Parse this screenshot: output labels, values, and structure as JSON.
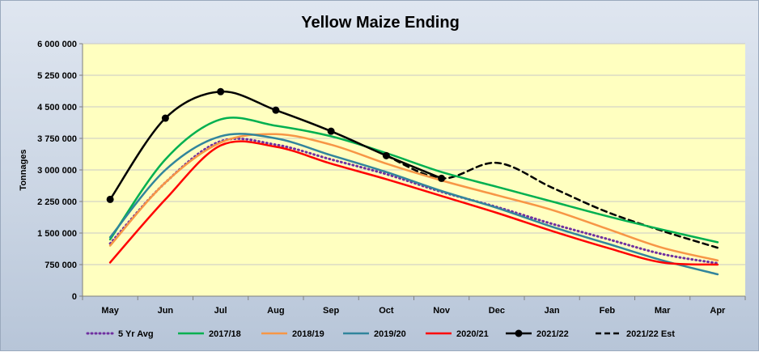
{
  "chart_data": {
    "type": "line",
    "title": "Yellow Maize Ending",
    "xlabel": "",
    "ylabel": "Tonnages",
    "categories": [
      "May",
      "Jun",
      "Jul",
      "Aug",
      "Sep",
      "Oct",
      "Nov",
      "Dec",
      "Jan",
      "Feb",
      "Mar",
      "Apr"
    ],
    "ylim": [
      0,
      6000000
    ],
    "yticks": [
      0,
      750000,
      1500000,
      2250000,
      3000000,
      3750000,
      4500000,
      5250000,
      6000000
    ],
    "ytick_labels": [
      "0",
      "750 000",
      "1 500 000",
      "2 250 000",
      "3 000 000",
      "3 750 000",
      "4 500 000",
      "5 250 000",
      "6 000 000"
    ],
    "grid": true,
    "legend_position": "bottom",
    "plot_background": "#ffffc0",
    "series": [
      {
        "name": "5 Yr Avg",
        "color": "#7030a0",
        "style": "dotted",
        "marker": false,
        "values": [
          1250000,
          2700000,
          3680000,
          3600000,
          3250000,
          2900000,
          2480000,
          2120000,
          1720000,
          1360000,
          1000000,
          780000
        ]
      },
      {
        "name": "2017/18",
        "color": "#00b050",
        "style": "solid",
        "marker": false,
        "values": [
          1350000,
          3250000,
          4200000,
          4050000,
          3800000,
          3400000,
          2950000,
          2600000,
          2250000,
          1900000,
          1580000,
          1280000
        ]
      },
      {
        "name": "2018/19",
        "color": "#f79646",
        "style": "solid",
        "marker": false,
        "values": [
          1200000,
          2700000,
          3650000,
          3850000,
          3600000,
          3150000,
          2750000,
          2400000,
          2050000,
          1600000,
          1150000,
          850000
        ]
      },
      {
        "name": "2019/20",
        "color": "#31859c",
        "style": "solid",
        "marker": false,
        "values": [
          1400000,
          3000000,
          3800000,
          3750000,
          3350000,
          2950000,
          2500000,
          2100000,
          1650000,
          1250000,
          850000,
          520000
        ]
      },
      {
        "name": "2020/21",
        "color": "#ff0000",
        "style": "solid",
        "marker": false,
        "values": [
          800000,
          2300000,
          3580000,
          3550000,
          3150000,
          2780000,
          2380000,
          1980000,
          1550000,
          1150000,
          800000,
          750000
        ]
      },
      {
        "name": "2021/22",
        "color": "#000000",
        "style": "solid",
        "marker": true,
        "values": [
          2300000,
          4230000,
          4860000,
          4420000,
          3920000,
          3340000,
          2800000,
          null,
          null,
          null,
          null,
          null
        ]
      },
      {
        "name": "2021/22 Est",
        "color": "#000000",
        "style": "dashed",
        "marker": false,
        "values": [
          null,
          null,
          null,
          null,
          null,
          3340000,
          2800000,
          3170000,
          2580000,
          2000000,
          1550000,
          1150000
        ]
      }
    ]
  }
}
